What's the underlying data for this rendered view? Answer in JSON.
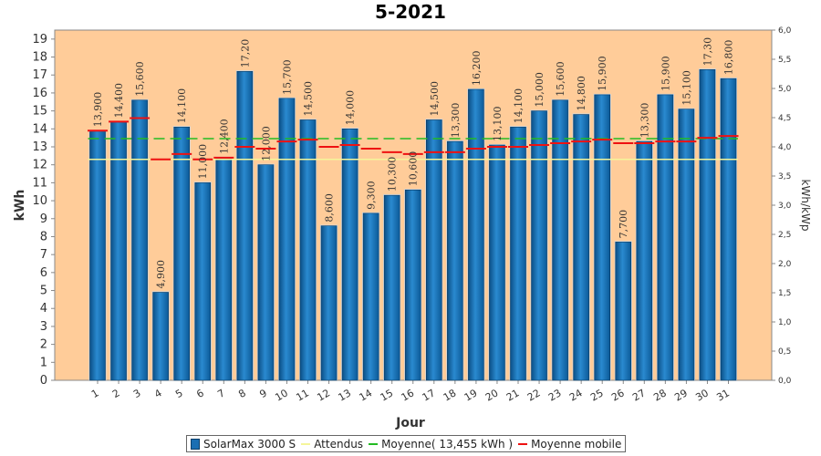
{
  "chart_data": {
    "type": "bar",
    "title": "5-2021",
    "xlabel": "Jour",
    "ylabel": "kWh",
    "y2label": "kWh/kWp",
    "ylim": [
      0,
      19.5
    ],
    "y2lim": [
      0,
      6.0
    ],
    "left_ticks": [
      "0",
      "1",
      "2",
      "3",
      "4",
      "5",
      "6",
      "7",
      "8",
      "9",
      "10",
      "11",
      "12",
      "13",
      "14",
      "15",
      "16",
      "17",
      "18",
      "19"
    ],
    "right_ticks": [
      "0,0",
      "0,5",
      "1,0",
      "1,5",
      "2,0",
      "2,5",
      "3,0",
      "3,5",
      "4,0",
      "4,5",
      "5,0",
      "5,5",
      "6,0"
    ],
    "categories": [
      "1",
      "2",
      "3",
      "4",
      "5",
      "6",
      "7",
      "8",
      "9",
      "10",
      "11",
      "12",
      "13",
      "14",
      "15",
      "16",
      "17",
      "18",
      "19",
      "20",
      "21",
      "22",
      "23",
      "24",
      "25",
      "26",
      "27",
      "28",
      "29",
      "30",
      "31"
    ],
    "values": [
      13.9,
      14.4,
      15.6,
      4.9,
      14.1,
      11.0,
      12.4,
      17.2,
      12.0,
      15.7,
      14.5,
      8.6,
      14.0,
      9.3,
      10.3,
      10.6,
      14.5,
      13.3,
      16.2,
      13.1,
      14.1,
      15.0,
      15.6,
      14.8,
      15.9,
      7.7,
      13.3,
      15.9,
      15.1,
      17.3,
      16.8
    ],
    "value_labels": [
      "13,900",
      "14,400",
      "15,600",
      "4,900",
      "14,100",
      "11,000",
      "12,400",
      "17,20",
      "12,000",
      "15,700",
      "14,500",
      "8,600",
      "14,000",
      "9,300",
      "10,300",
      "10,600",
      "14,500",
      "13,300",
      "16,200",
      "13,100",
      "14,100",
      "15,000",
      "15,600",
      "14,800",
      "15,900",
      "7,700",
      "13,300",
      "15,900",
      "15,100",
      "17,30",
      "16,800"
    ],
    "expected": 12.3,
    "average": 13.455,
    "moving_average": [
      13.9,
      14.4,
      14.6,
      12.3,
      12.6,
      12.3,
      12.4,
      13.0,
      12.9,
      13.3,
      13.4,
      13.0,
      13.1,
      12.9,
      12.7,
      12.6,
      12.7,
      12.7,
      12.9,
      13.0,
      13.0,
      13.1,
      13.2,
      13.3,
      13.4,
      13.2,
      13.2,
      13.3,
      13.3,
      13.5,
      13.6
    ],
    "series": [
      {
        "name": "SolarMax 3000 S",
        "color": "#1a6fb3"
      },
      {
        "name": "Attendus",
        "color": "#f5f59a"
      },
      {
        "name": "Moyenne( 13,455 kWh )",
        "color": "#22bb22"
      },
      {
        "name": "Moyenne mobile",
        "color": "#ee1111"
      }
    ],
    "plot_bg": "#ffcc99",
    "legend_position": "bottom",
    "grid": false
  }
}
